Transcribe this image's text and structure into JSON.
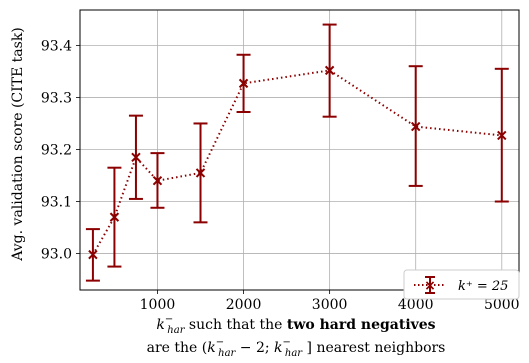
{
  "chart_data": {
    "type": "line",
    "x": [
      250,
      500,
      750,
      1000,
      1500,
      2000,
      3000,
      4000,
      5000
    ],
    "series": [
      {
        "name": "k⁺ = 25",
        "y": [
          92.998,
          93.07,
          93.185,
          93.14,
          93.155,
          93.327,
          93.352,
          93.244,
          93.227
        ],
        "err_low": [
          92.948,
          92.975,
          93.105,
          93.088,
          93.06,
          93.272,
          93.263,
          93.13,
          93.1
        ],
        "err_high": [
          93.047,
          93.165,
          93.265,
          93.193,
          93.25,
          93.382,
          93.44,
          93.36,
          93.355
        ]
      }
    ],
    "xlim": [
      100,
      5200
    ],
    "ylim": [
      92.93,
      93.468
    ],
    "xticks": [
      1000,
      2000,
      3000,
      4000,
      5000
    ],
    "xtick_labels": [
      "1000",
      "2000",
      "3000",
      "4000",
      "5000"
    ],
    "yticks": [
      93.0,
      93.1,
      93.2,
      93.3,
      93.4
    ],
    "ytick_labels": [
      "93.0",
      "93.1",
      "93.2",
      "93.3",
      "93.4"
    ],
    "ylabel": "Avg. validation score (CITE task)",
    "xlabel_line1": {
      "k": "k",
      "sup": "−",
      "sub": "har",
      "pre_bold": " such that the ",
      "bold": "two hard negatives"
    },
    "xlabel_line2": {
      "prefix": "are the (",
      "k1": "k",
      "sup1": "−",
      "sub1": "har",
      "mid": " − 2; ",
      "k2": "k",
      "sup2": "−",
      "sub2": "har",
      "suffix": " ] nearest neighbors"
    },
    "grid": true,
    "legend_position": "bottom-right",
    "color": "#8b0000"
  }
}
